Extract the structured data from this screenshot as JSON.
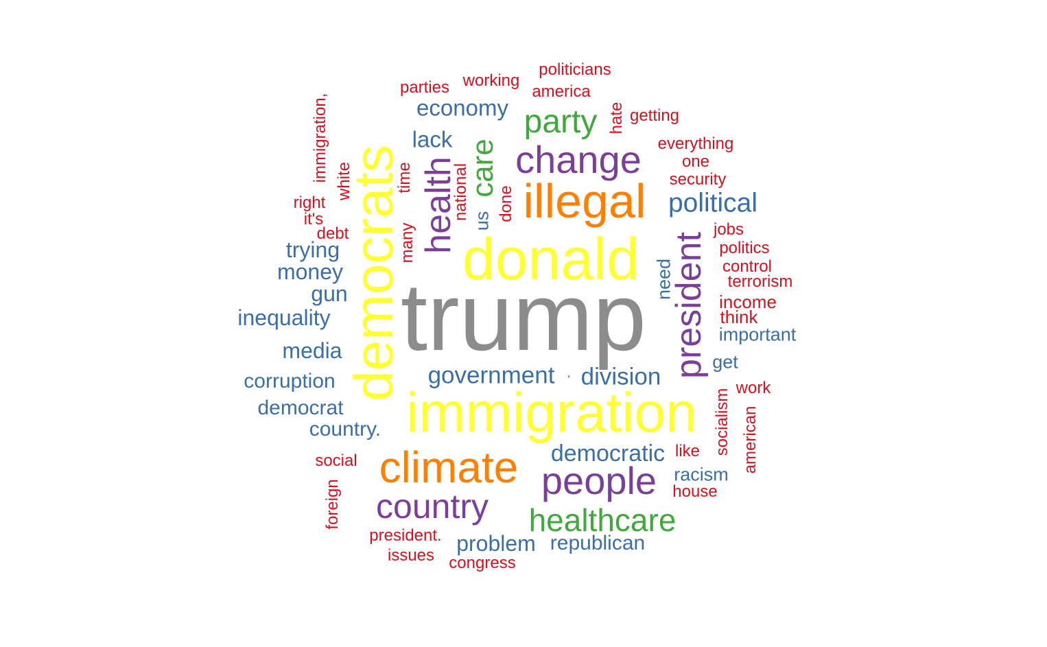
{
  "colors": {
    "gray": "#8c8c8c",
    "yellow": "#ffff33",
    "orange": "#ff7f00",
    "purple": "#7b3f9a",
    "green": "#41a83e",
    "blue": "#3a6ea8",
    "red": "#d7101e"
  },
  "words": [
    {
      "text": "trump",
      "color": "gray"
    },
    {
      "text": "donald",
      "color": "yellow"
    },
    {
      "text": "immigration",
      "color": "yellow"
    },
    {
      "text": "democrats",
      "color": "yellow"
    },
    {
      "text": "illegal",
      "color": "orange"
    },
    {
      "text": "climate",
      "color": "orange"
    },
    {
      "text": "change",
      "color": "purple"
    },
    {
      "text": "people",
      "color": "purple"
    },
    {
      "text": "country",
      "color": "purple"
    },
    {
      "text": "president",
      "color": "purple"
    },
    {
      "text": "health",
      "color": "purple"
    },
    {
      "text": "party",
      "color": "green"
    },
    {
      "text": "care",
      "color": "green"
    },
    {
      "text": "healthcare",
      "color": "green"
    },
    {
      "text": "economy",
      "color": "blue"
    },
    {
      "text": "lack",
      "color": "blue"
    },
    {
      "text": "political",
      "color": "blue"
    },
    {
      "text": "government",
      "color": "blue"
    },
    {
      "text": "division",
      "color": "blue"
    },
    {
      "text": "democratic",
      "color": "blue"
    },
    {
      "text": "trying",
      "color": "blue"
    },
    {
      "text": "money",
      "color": "blue"
    },
    {
      "text": "gun",
      "color": "blue"
    },
    {
      "text": "inequality",
      "color": "blue"
    },
    {
      "text": "media",
      "color": "blue"
    },
    {
      "text": "corruption",
      "color": "blue"
    },
    {
      "text": "democrat",
      "color": "blue"
    },
    {
      "text": "country.",
      "color": "blue"
    },
    {
      "text": "problem",
      "color": "blue"
    },
    {
      "text": "republican",
      "color": "blue"
    },
    {
      "text": "racism",
      "color": "blue"
    },
    {
      "text": "important",
      "color": "blue"
    },
    {
      "text": "get",
      "color": "blue"
    },
    {
      "text": "need",
      "color": "blue"
    },
    {
      "text": "us",
      "color": "blue"
    },
    {
      "text": "politicians",
      "color": "red"
    },
    {
      "text": "working",
      "color": "red"
    },
    {
      "text": "parties",
      "color": "red"
    },
    {
      "text": "america",
      "color": "red"
    },
    {
      "text": "getting",
      "color": "red"
    },
    {
      "text": "hate",
      "color": "red"
    },
    {
      "text": "everything",
      "color": "red"
    },
    {
      "text": "one",
      "color": "red"
    },
    {
      "text": "security",
      "color": "red"
    },
    {
      "text": "jobs",
      "color": "red"
    },
    {
      "text": "politics",
      "color": "red"
    },
    {
      "text": "control",
      "color": "red"
    },
    {
      "text": "terrorism",
      "color": "red"
    },
    {
      "text": "income",
      "color": "red"
    },
    {
      "text": "think",
      "color": "red"
    },
    {
      "text": "work",
      "color": "red"
    },
    {
      "text": "like",
      "color": "red"
    },
    {
      "text": "house",
      "color": "red"
    },
    {
      "text": "socialism",
      "color": "red"
    },
    {
      "text": "american",
      "color": "red"
    },
    {
      "text": "immigration,",
      "color": "red"
    },
    {
      "text": "white",
      "color": "red"
    },
    {
      "text": "right",
      "color": "red"
    },
    {
      "text": "it's",
      "color": "red"
    },
    {
      "text": "debt",
      "color": "red"
    },
    {
      "text": "time",
      "color": "red"
    },
    {
      "text": "national",
      "color": "red"
    },
    {
      "text": "done",
      "color": "red"
    },
    {
      "text": "many",
      "color": "red"
    },
    {
      "text": "social",
      "color": "red"
    },
    {
      "text": "foreign",
      "color": "red"
    },
    {
      "text": "president.",
      "color": "red"
    },
    {
      "text": "issues",
      "color": "red"
    },
    {
      "text": "congress",
      "color": "red"
    },
    {
      "text": ",",
      "color": "red"
    }
  ]
}
